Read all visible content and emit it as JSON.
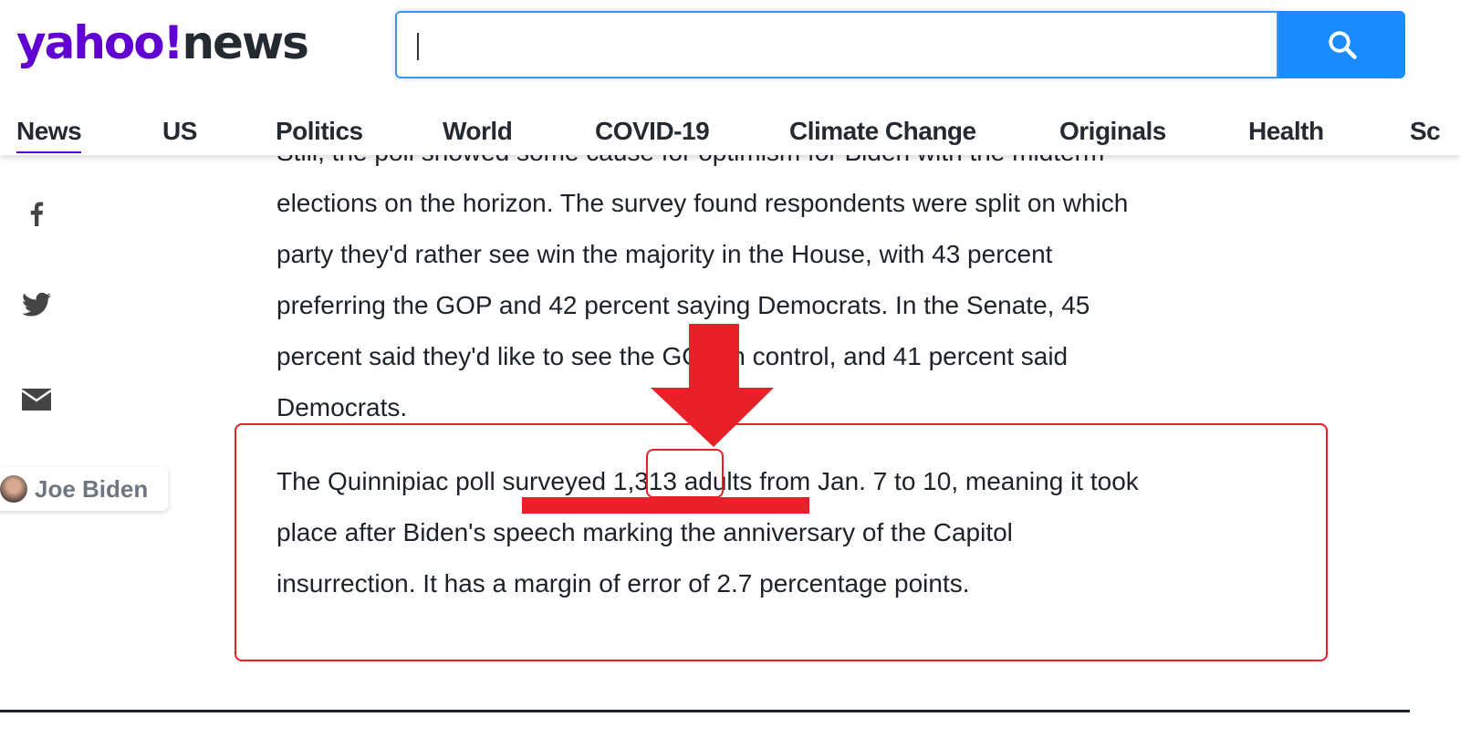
{
  "header": {
    "logo_primary": "yahoo!",
    "logo_secondary": "news",
    "search": {
      "value": "",
      "placeholder": ""
    }
  },
  "nav": [
    "News",
    "US",
    "Politics",
    "World",
    "COVID-19",
    "Climate Change",
    "Originals",
    "Health",
    "Sc"
  ],
  "share": [
    "facebook-icon",
    "twitter-icon",
    "mail-icon"
  ],
  "topic_tag": "Joe Biden",
  "article": {
    "para1": [
      "Still, the poll showed some cause for optimism for Biden with the midterm",
      "elections on the horizon. The survey found respondents were split on which",
      "party they'd rather see win the majority in the House, with 43 percent",
      "preferring the GOP and 42 percent saying Democrats. In the Senate, 45",
      "percent said they'd like to see the GOP in control, and 41 percent said",
      "Democrats."
    ],
    "para2": [
      "The Quinnipiac poll surveyed 1,313 adults from Jan. 7 to 10, meaning it took",
      "place after Biden's speech marking the anniversary of the Capitol",
      "insurrection. It has a margin of error of 2.7 percentage points."
    ]
  },
  "annotation_color": "#e8202a",
  "accent": "#6001d2"
}
